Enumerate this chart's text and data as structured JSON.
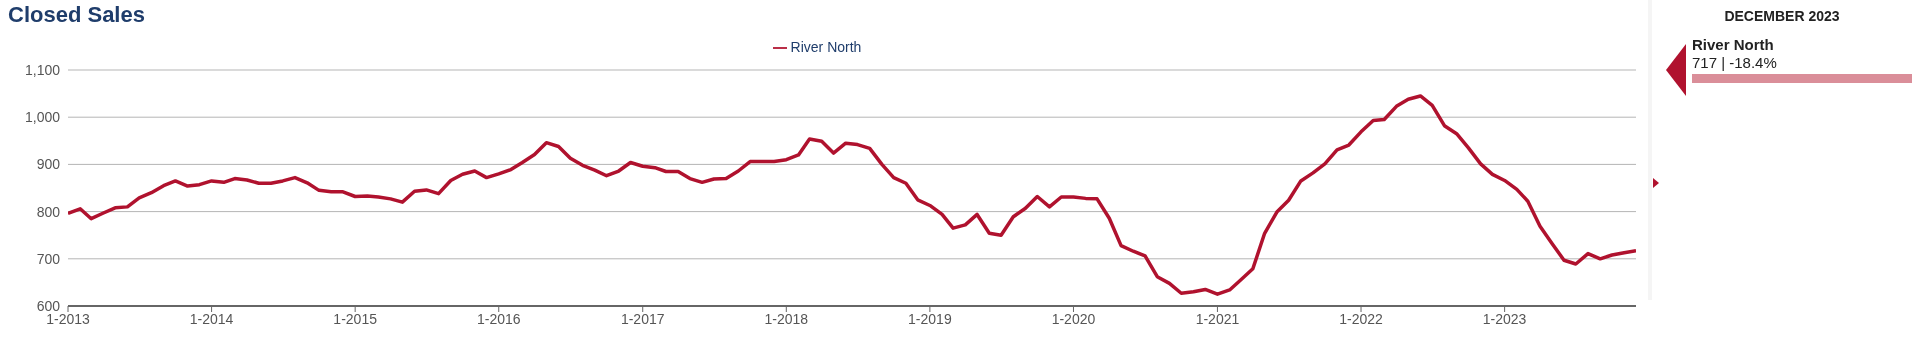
{
  "chart_data": {
    "type": "line",
    "title": "Closed Sales",
    "legend": "top",
    "grid": "y",
    "marker": "none",
    "line_style": "solid",
    "annotations": [
      "DECEMBER 2023",
      "River North",
      "717 | -18.4%"
    ],
    "x": [
      "2013-01",
      "2013-02",
      "2013-03",
      "2013-04",
      "2013-05",
      "2013-06",
      "2013-07",
      "2013-08",
      "2013-09",
      "2013-10",
      "2013-11",
      "2013-12",
      "2014-01",
      "2014-02",
      "2014-03",
      "2014-04",
      "2014-05",
      "2014-06",
      "2014-07",
      "2014-08",
      "2014-09",
      "2014-10",
      "2014-11",
      "2014-12",
      "2015-01",
      "2015-02",
      "2015-03",
      "2015-04",
      "2015-05",
      "2015-06",
      "2015-07",
      "2015-08",
      "2015-09",
      "2015-10",
      "2015-11",
      "2015-12",
      "2016-01",
      "2016-02",
      "2016-03",
      "2016-04",
      "2016-05",
      "2016-06",
      "2016-07",
      "2016-08",
      "2016-09",
      "2016-10",
      "2016-11",
      "2016-12",
      "2017-01",
      "2017-02",
      "2017-03",
      "2017-04",
      "2017-05",
      "2017-06",
      "2017-07",
      "2017-08",
      "2017-09",
      "2017-10",
      "2017-11",
      "2017-12",
      "2018-01",
      "2018-02",
      "2018-03",
      "2018-04",
      "2018-05",
      "2018-06",
      "2018-07",
      "2018-08",
      "2018-09",
      "2018-10",
      "2018-11",
      "2018-12",
      "2019-01",
      "2019-02",
      "2019-03",
      "2019-04",
      "2019-05",
      "2019-06",
      "2019-07",
      "2019-08",
      "2019-09",
      "2019-10",
      "2019-11",
      "2019-12",
      "2020-01",
      "2020-02",
      "2020-03",
      "2020-04",
      "2020-05",
      "2020-06",
      "2020-07",
      "2020-08",
      "2020-09",
      "2020-10",
      "2020-11",
      "2020-12",
      "2021-01",
      "2021-02",
      "2021-03",
      "2021-04",
      "2021-05",
      "2021-06",
      "2021-07",
      "2021-08",
      "2021-09",
      "2021-10",
      "2021-11",
      "2021-12",
      "2022-01",
      "2022-02",
      "2022-03",
      "2022-04",
      "2022-05",
      "2022-06",
      "2022-07",
      "2022-08",
      "2022-09",
      "2022-10",
      "2022-11",
      "2022-12",
      "2023-01",
      "2023-02",
      "2023-03",
      "2023-04",
      "2023-05",
      "2023-06",
      "2023-07",
      "2023-08",
      "2023-09",
      "2023-10",
      "2023-11",
      "2023-12"
    ],
    "series": [
      {
        "name": "River North",
        "color": "#b0122e",
        "values": [
          796,
          806,
          785,
          797,
          808,
          810,
          829,
          840,
          855,
          865,
          854,
          857,
          865,
          862,
          870,
          867,
          860,
          860,
          865,
          872,
          861,
          845,
          842,
          842,
          832,
          833,
          831,
          827,
          820,
          843,
          846,
          838,
          866,
          879,
          886,
          872,
          880,
          889,
          904,
          921,
          946,
          938,
          913,
          898,
          888,
          876,
          886,
          904,
          896,
          893,
          885,
          885,
          870,
          862,
          869,
          870,
          886,
          906,
          906,
          906,
          910,
          920,
          954,
          949,
          924,
          945,
          942,
          934,
          900,
          872,
          860,
          825,
          813,
          794,
          765,
          772,
          794,
          754,
          750,
          789,
          807,
          832,
          810,
          831,
          831,
          828,
          827,
          786,
          728,
          716,
          706,
          662,
          648,
          627,
          630,
          635,
          625,
          634,
          655,
          679,
          754,
          799,
          824,
          865,
          882,
          901,
          931,
          941,
          969,
          993,
          995,
          1023,
          1038,
          1045,
          1025,
          982,
          965,
          935,
          901,
          879,
          866,
          847,
          822,
          769,
          733,
          697,
          689,
          711,
          700,
          708,
          713,
          717
        ]
      }
    ],
    "xlim": [
      "2013-01",
      "2023-12"
    ],
    "xticks": [
      {
        "value": "2013-01",
        "label": "1-2013"
      },
      {
        "value": "2014-01",
        "label": "1-2014"
      },
      {
        "value": "2015-01",
        "label": "1-2015"
      },
      {
        "value": "2016-01",
        "label": "1-2016"
      },
      {
        "value": "2017-01",
        "label": "1-2017"
      },
      {
        "value": "2018-01",
        "label": "1-2018"
      },
      {
        "value": "2019-01",
        "label": "1-2019"
      },
      {
        "value": "2020-01",
        "label": "1-2020"
      },
      {
        "value": "2021-01",
        "label": "1-2021"
      },
      {
        "value": "2022-01",
        "label": "1-2022"
      },
      {
        "value": "2023-01",
        "label": "1-2023"
      }
    ],
    "ylim": [
      600,
      1100
    ],
    "yticks": [
      600,
      700,
      800,
      900,
      {
        "value": 1000,
        "label": "1,000"
      },
      {
        "value": 1100,
        "label": "1,100"
      }
    ]
  }
}
